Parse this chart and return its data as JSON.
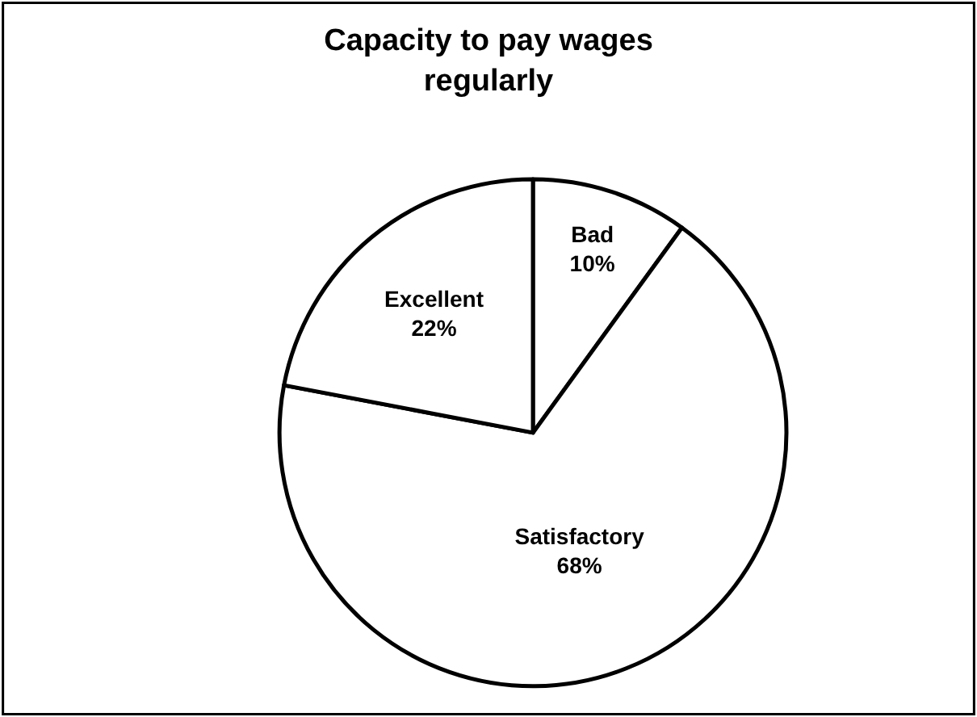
{
  "chart_data": {
    "type": "pie",
    "title": "Capacity to pay wages regularly",
    "categories": [
      "Bad",
      "Satisfactory",
      "Excellent"
    ],
    "values": [
      10,
      68,
      22
    ],
    "value_labels": [
      "10%",
      "68%",
      "22%"
    ],
    "colors": [
      "#ffffff",
      "#ffffff",
      "#ffffff"
    ],
    "legend": false
  }
}
